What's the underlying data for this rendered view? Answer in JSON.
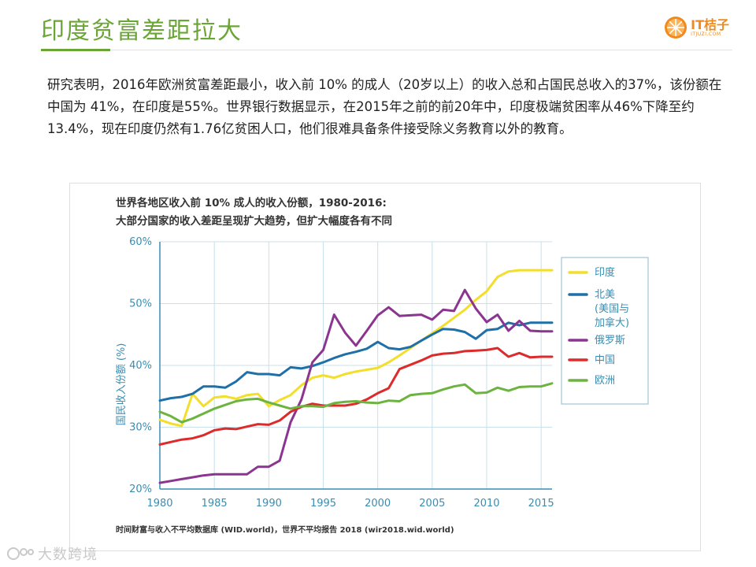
{
  "slide": {
    "title": "印度贫富差距拉大",
    "paragraph": "研究表明，2016年欧洲贫富差距最小，收入前 10% 的成人（20岁以上）的收入总和占国民总收入的37%，该份额在中国为 41%，在印度是55%。世界银行数据显示，在2015年之前的前20年中，印度极端贫困率从46%下降至约13.4%，现在印度仍然有1.76亿贫困人口，他们很难具备条件接受除义务教育以外的教育。"
  },
  "logo": {
    "name": "IT桔子",
    "sub": "ITJUZI.COM",
    "color": "#f08a1e"
  },
  "watermark": {
    "text": "大数跨境"
  },
  "chart_data": {
    "type": "line",
    "title_line1": "世界各地区收入前 10% 成人的收入份额，1980-2016:",
    "title_line2": "大部分国家的收入差距呈现扩大趋势，但扩大幅度各有不同",
    "ylabel": "国民收入份额 (%)",
    "xlabel": "",
    "source": "时间财富与收入不平均数据库 (WID.world)，世界不平均报告 2018 (wir2018.wid.world)",
    "xlim": [
      1980,
      2016
    ],
    "ylim": [
      20,
      60
    ],
    "x_ticks": [
      1980,
      1985,
      1990,
      1995,
      2000,
      2005,
      2010,
      2015
    ],
    "y_ticks": [
      20,
      30,
      40,
      50,
      60
    ],
    "y_tick_labels": [
      "20%",
      "30%",
      "40%",
      "50%",
      "60%"
    ],
    "grid": true,
    "legend_position": "right",
    "x": [
      1980,
      1981,
      1982,
      1983,
      1984,
      1985,
      1986,
      1987,
      1988,
      1989,
      1990,
      1991,
      1992,
      1993,
      1994,
      1995,
      1996,
      1997,
      1998,
      1999,
      2000,
      2001,
      2002,
      2003,
      2004,
      2005,
      2006,
      2007,
      2008,
      2009,
      2010,
      2011,
      2012,
      2013,
      2014,
      2015,
      2016
    ],
    "series": [
      {
        "name": "印度",
        "color": "#f2de2b",
        "values": [
          31.2,
          30.6,
          30.2,
          35.4,
          33.4,
          34.8,
          35.0,
          34.6,
          35.2,
          35.4,
          33.4,
          34.4,
          35.2,
          36.8,
          38.0,
          38.4,
          38.0,
          38.6,
          39.0,
          39.3,
          39.6,
          40.5,
          41.6,
          42.8,
          44.0,
          45.2,
          46.4,
          47.7,
          49.0,
          50.6,
          52.0,
          54.3,
          55.2,
          55.4,
          55.4,
          55.4,
          55.4
        ]
      },
      {
        "name": "北美\n(美国与\n加拿大)",
        "color": "#1f6fa8",
        "values": [
          34.3,
          34.7,
          34.9,
          35.4,
          36.6,
          36.6,
          36.4,
          37.4,
          38.9,
          38.6,
          38.6,
          38.4,
          39.7,
          39.5,
          39.9,
          40.5,
          41.2,
          41.8,
          42.2,
          42.7,
          43.8,
          42.8,
          42.6,
          43.0,
          44.0,
          45.0,
          45.9,
          45.8,
          45.4,
          44.3,
          45.7,
          45.9,
          46.9,
          46.5,
          46.9,
          46.9,
          46.9
        ]
      },
      {
        "name": "俄罗斯",
        "color": "#8b3590",
        "values": [
          21.0,
          21.3,
          21.6,
          21.9,
          22.2,
          22.4,
          22.4,
          22.4,
          22.4,
          23.6,
          23.6,
          24.6,
          30.8,
          34.5,
          40.5,
          42.5,
          48.2,
          45.3,
          43.2,
          45.6,
          48.1,
          49.4,
          48.0,
          48.1,
          48.2,
          47.4,
          49.0,
          48.8,
          52.2,
          49.2,
          47.0,
          48.2,
          45.6,
          47.2,
          45.6,
          45.5,
          45.5
        ]
      },
      {
        "name": "中国",
        "color": "#dd2a2a",
        "values": [
          27.2,
          27.6,
          28.0,
          28.2,
          28.7,
          29.5,
          29.8,
          29.7,
          30.1,
          30.5,
          30.4,
          31.1,
          32.5,
          33.3,
          33.8,
          33.5,
          33.5,
          33.5,
          33.8,
          34.5,
          35.5,
          36.3,
          39.4,
          40.1,
          40.8,
          41.6,
          41.9,
          42.0,
          42.3,
          42.4,
          42.5,
          42.8,
          41.4,
          42.0,
          41.3,
          41.4,
          41.4
        ]
      },
      {
        "name": "欧洲",
        "color": "#6cb33f",
        "values": [
          32.5,
          31.8,
          30.8,
          31.4,
          32.2,
          33.0,
          33.6,
          34.2,
          34.5,
          34.6,
          34.0,
          33.5,
          33.0,
          33.4,
          33.4,
          33.3,
          33.9,
          34.1,
          34.2,
          34.0,
          33.9,
          34.3,
          34.2,
          35.2,
          35.4,
          35.5,
          36.1,
          36.6,
          36.9,
          35.5,
          35.6,
          36.4,
          35.9,
          36.5,
          36.6,
          36.6,
          37.1
        ]
      }
    ]
  }
}
